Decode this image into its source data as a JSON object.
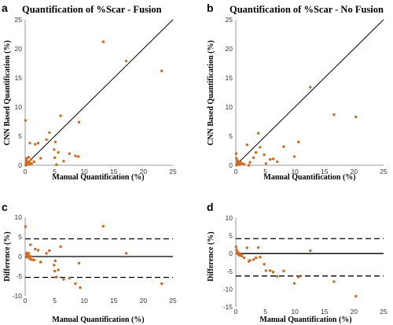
{
  "colors": {
    "point": "#d2691e",
    "line": "#000000",
    "axis": "#999999"
  },
  "chart_data": [
    {
      "panel_label": "a",
      "type": "scatter",
      "title": "Quantification of %Scar - Fusion",
      "xlabel": "Manual Quantification (%)",
      "ylabel": "CNN Based Quantification (%)",
      "xlim": [
        0,
        25
      ],
      "ylim": [
        0,
        25
      ],
      "xticks": [
        0,
        5,
        10,
        15,
        20,
        25
      ],
      "yticks": [
        0,
        5,
        10,
        15,
        20,
        25
      ],
      "identity_line": true,
      "points": [
        [
          0.05,
          7.7
        ],
        [
          0.2,
          0.8
        ],
        [
          0.3,
          1.2
        ],
        [
          0.5,
          0.5
        ],
        [
          0.6,
          1.4
        ],
        [
          0.8,
          0.2
        ],
        [
          0.8,
          3.8
        ],
        [
          1.0,
          1.0
        ],
        [
          1.1,
          0.3
        ],
        [
          1.5,
          0.6
        ],
        [
          1.7,
          3.6
        ],
        [
          2.2,
          3.8
        ],
        [
          2.6,
          1.2
        ],
        [
          3.6,
          4.4
        ],
        [
          4.1,
          5.6
        ],
        [
          4.9,
          2.7
        ],
        [
          5.0,
          1.3
        ],
        [
          5.1,
          4.0
        ],
        [
          5.3,
          0.1
        ],
        [
          5.6,
          2.2
        ],
        [
          6.0,
          8.5
        ],
        [
          6.5,
          0.7
        ],
        [
          7.5,
          2.0
        ],
        [
          8.5,
          1.6
        ],
        [
          9.0,
          1.5
        ],
        [
          9.1,
          7.4
        ],
        [
          13.2,
          21.2
        ],
        [
          17.1,
          17.9
        ],
        [
          23.1,
          16.2
        ],
        [
          0.1,
          0.0
        ],
        [
          0.3,
          0.1
        ],
        [
          0.4,
          0.3
        ],
        [
          0.2,
          0.4
        ],
        [
          0.7,
          0.6
        ]
      ]
    },
    {
      "panel_label": "b",
      "type": "scatter",
      "title": "Quantification of %Scar - No Fusion",
      "xlabel": "Manual Quantification (%)",
      "ylabel": "CNN Based Quantification (%)",
      "xlim": [
        0,
        25
      ],
      "ylim": [
        0,
        25
      ],
      "xticks": [
        0,
        5,
        10,
        15,
        20,
        25
      ],
      "yticks": [
        0,
        5,
        10,
        15,
        20,
        25
      ],
      "identity_line": true,
      "points": [
        [
          0.05,
          2.0
        ],
        [
          0.1,
          1.2
        ],
        [
          0.2,
          0.4
        ],
        [
          0.3,
          0.8
        ],
        [
          0.4,
          0.2
        ],
        [
          0.6,
          0.1
        ],
        [
          0.8,
          0.5
        ],
        [
          1.0,
          0.3
        ],
        [
          1.4,
          0.2
        ],
        [
          1.9,
          3.5
        ],
        [
          2.2,
          0.0
        ],
        [
          2.4,
          0.5
        ],
        [
          3.0,
          1.3
        ],
        [
          3.4,
          2.2
        ],
        [
          3.8,
          5.5
        ],
        [
          4.1,
          3.1
        ],
        [
          4.8,
          1.8
        ],
        [
          5.1,
          0.3
        ],
        [
          5.8,
          1.0
        ],
        [
          6.3,
          1.1
        ],
        [
          7.0,
          0.6
        ],
        [
          8.1,
          3.2
        ],
        [
          9.9,
          1.5
        ],
        [
          10.6,
          4.0
        ],
        [
          12.6,
          13.4
        ],
        [
          16.6,
          8.7
        ],
        [
          20.3,
          8.3
        ],
        [
          0.1,
          0.0
        ],
        [
          0.3,
          0.3
        ],
        [
          0.5,
          0.6
        ]
      ]
    },
    {
      "panel_label": "c",
      "type": "scatter",
      "title": "",
      "xlabel": "Manual Quantification (%)",
      "ylabel": "Difference (%)",
      "xlim": [
        0,
        25
      ],
      "ylim": [
        -10,
        10
      ],
      "xticks": [
        0,
        5,
        10,
        15,
        20,
        25
      ],
      "yticks": [
        -10,
        -5,
        0,
        5,
        10
      ],
      "reference_lines": {
        "mean": 0,
        "upper_loa": 4.5,
        "lower_loa": -5.3
      },
      "points": [
        [
          0.05,
          7.6
        ],
        [
          0.2,
          0.6
        ],
        [
          0.3,
          0.9
        ],
        [
          0.4,
          0.2
        ],
        [
          0.5,
          -0.1
        ],
        [
          0.6,
          0.8
        ],
        [
          0.8,
          -0.6
        ],
        [
          0.9,
          3.0
        ],
        [
          1.0,
          0.0
        ],
        [
          1.1,
          -0.8
        ],
        [
          1.5,
          -0.9
        ],
        [
          1.7,
          1.9
        ],
        [
          2.2,
          1.6
        ],
        [
          2.6,
          -1.4
        ],
        [
          3.6,
          0.8
        ],
        [
          4.1,
          1.5
        ],
        [
          4.9,
          -2.2
        ],
        [
          5.0,
          -3.7
        ],
        [
          5.1,
          -1.1
        ],
        [
          5.3,
          -5.2
        ],
        [
          5.6,
          -3.4
        ],
        [
          6.0,
          2.5
        ],
        [
          6.5,
          -5.8
        ],
        [
          7.5,
          -5.5
        ],
        [
          8.5,
          -6.9
        ],
        [
          9.1,
          -1.7
        ],
        [
          9.3,
          -7.9
        ],
        [
          13.2,
          7.7
        ],
        [
          17.1,
          0.8
        ],
        [
          23.1,
          -6.9
        ],
        [
          0.3,
          -0.2
        ],
        [
          0.7,
          0.1
        ]
      ]
    },
    {
      "panel_label": "d",
      "type": "scatter",
      "title": "",
      "xlabel": "Manual Quantification (%)",
      "ylabel": "Difference (%)",
      "xlim": [
        0,
        25
      ],
      "ylim": [
        -15,
        10
      ],
      "xticks": [
        0,
        5,
        10,
        15,
        20,
        25
      ],
      "yticks": [
        -15,
        -10,
        -5,
        0,
        5,
        10
      ],
      "reference_lines": {
        "mean": 0,
        "upper_loa": 4.2,
        "lower_loa": -6.3
      },
      "points": [
        [
          0.05,
          1.9
        ],
        [
          0.1,
          1.1
        ],
        [
          0.2,
          0.2
        ],
        [
          0.3,
          0.5
        ],
        [
          0.4,
          -0.2
        ],
        [
          0.6,
          -0.5
        ],
        [
          0.8,
          -0.3
        ],
        [
          1.0,
          -0.7
        ],
        [
          1.4,
          -1.2
        ],
        [
          1.9,
          1.6
        ],
        [
          2.2,
          -2.2
        ],
        [
          2.4,
          -1.9
        ],
        [
          3.0,
          -1.7
        ],
        [
          3.4,
          -1.2
        ],
        [
          3.8,
          1.7
        ],
        [
          4.1,
          -1.0
        ],
        [
          4.8,
          -3.0
        ],
        [
          5.1,
          -4.8
        ],
        [
          5.8,
          -4.8
        ],
        [
          6.3,
          -5.2
        ],
        [
          7.0,
          -6.4
        ],
        [
          8.1,
          -4.9
        ],
        [
          9.9,
          -8.4
        ],
        [
          10.6,
          -6.6
        ],
        [
          12.6,
          0.8
        ],
        [
          16.6,
          -7.9
        ],
        [
          20.3,
          -12.0
        ],
        [
          0.3,
          0.0
        ],
        [
          0.5,
          0.1
        ]
      ]
    }
  ]
}
